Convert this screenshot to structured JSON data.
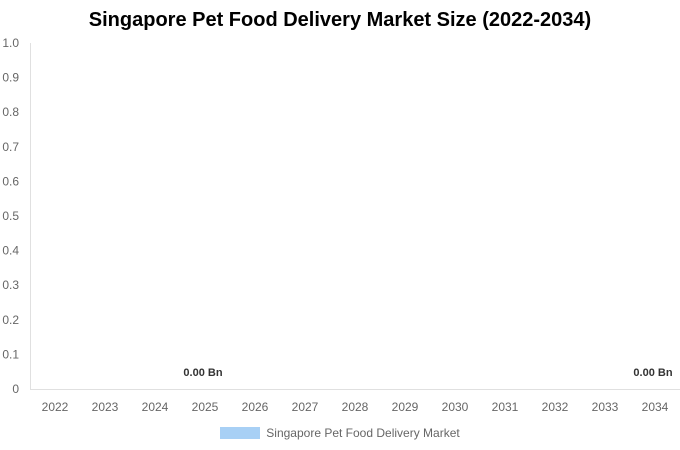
{
  "chart_data": {
    "type": "bar",
    "title": "Singapore Pet Food Delivery Market Size (2022-2034)",
    "categories": [
      "2022",
      "2023",
      "2024",
      "2025",
      "2026",
      "2027",
      "2028",
      "2029",
      "2030",
      "2031",
      "2032",
      "2033",
      "2034"
    ],
    "series": [
      {
        "name": "Singapore Pet Food Delivery Market",
        "values": [
          0,
          0,
          0,
          0,
          0,
          0,
          0,
          0,
          0,
          0,
          0,
          0,
          0
        ],
        "color": "#a8d0f5"
      }
    ],
    "data_labels": [
      {
        "category": "2025",
        "text": "0.00 Bn"
      },
      {
        "category": "2034",
        "text": "0.00 Bn"
      }
    ],
    "yticks": [
      "0",
      "0.1",
      "0.2",
      "0.3",
      "0.4",
      "0.5",
      "0.6",
      "0.7",
      "0.8",
      "0.9",
      "1.0"
    ],
    "ylim": [
      0,
      1.0
    ],
    "xlabel": "",
    "ylabel": "",
    "grid": false,
    "legend_position": "bottom"
  }
}
